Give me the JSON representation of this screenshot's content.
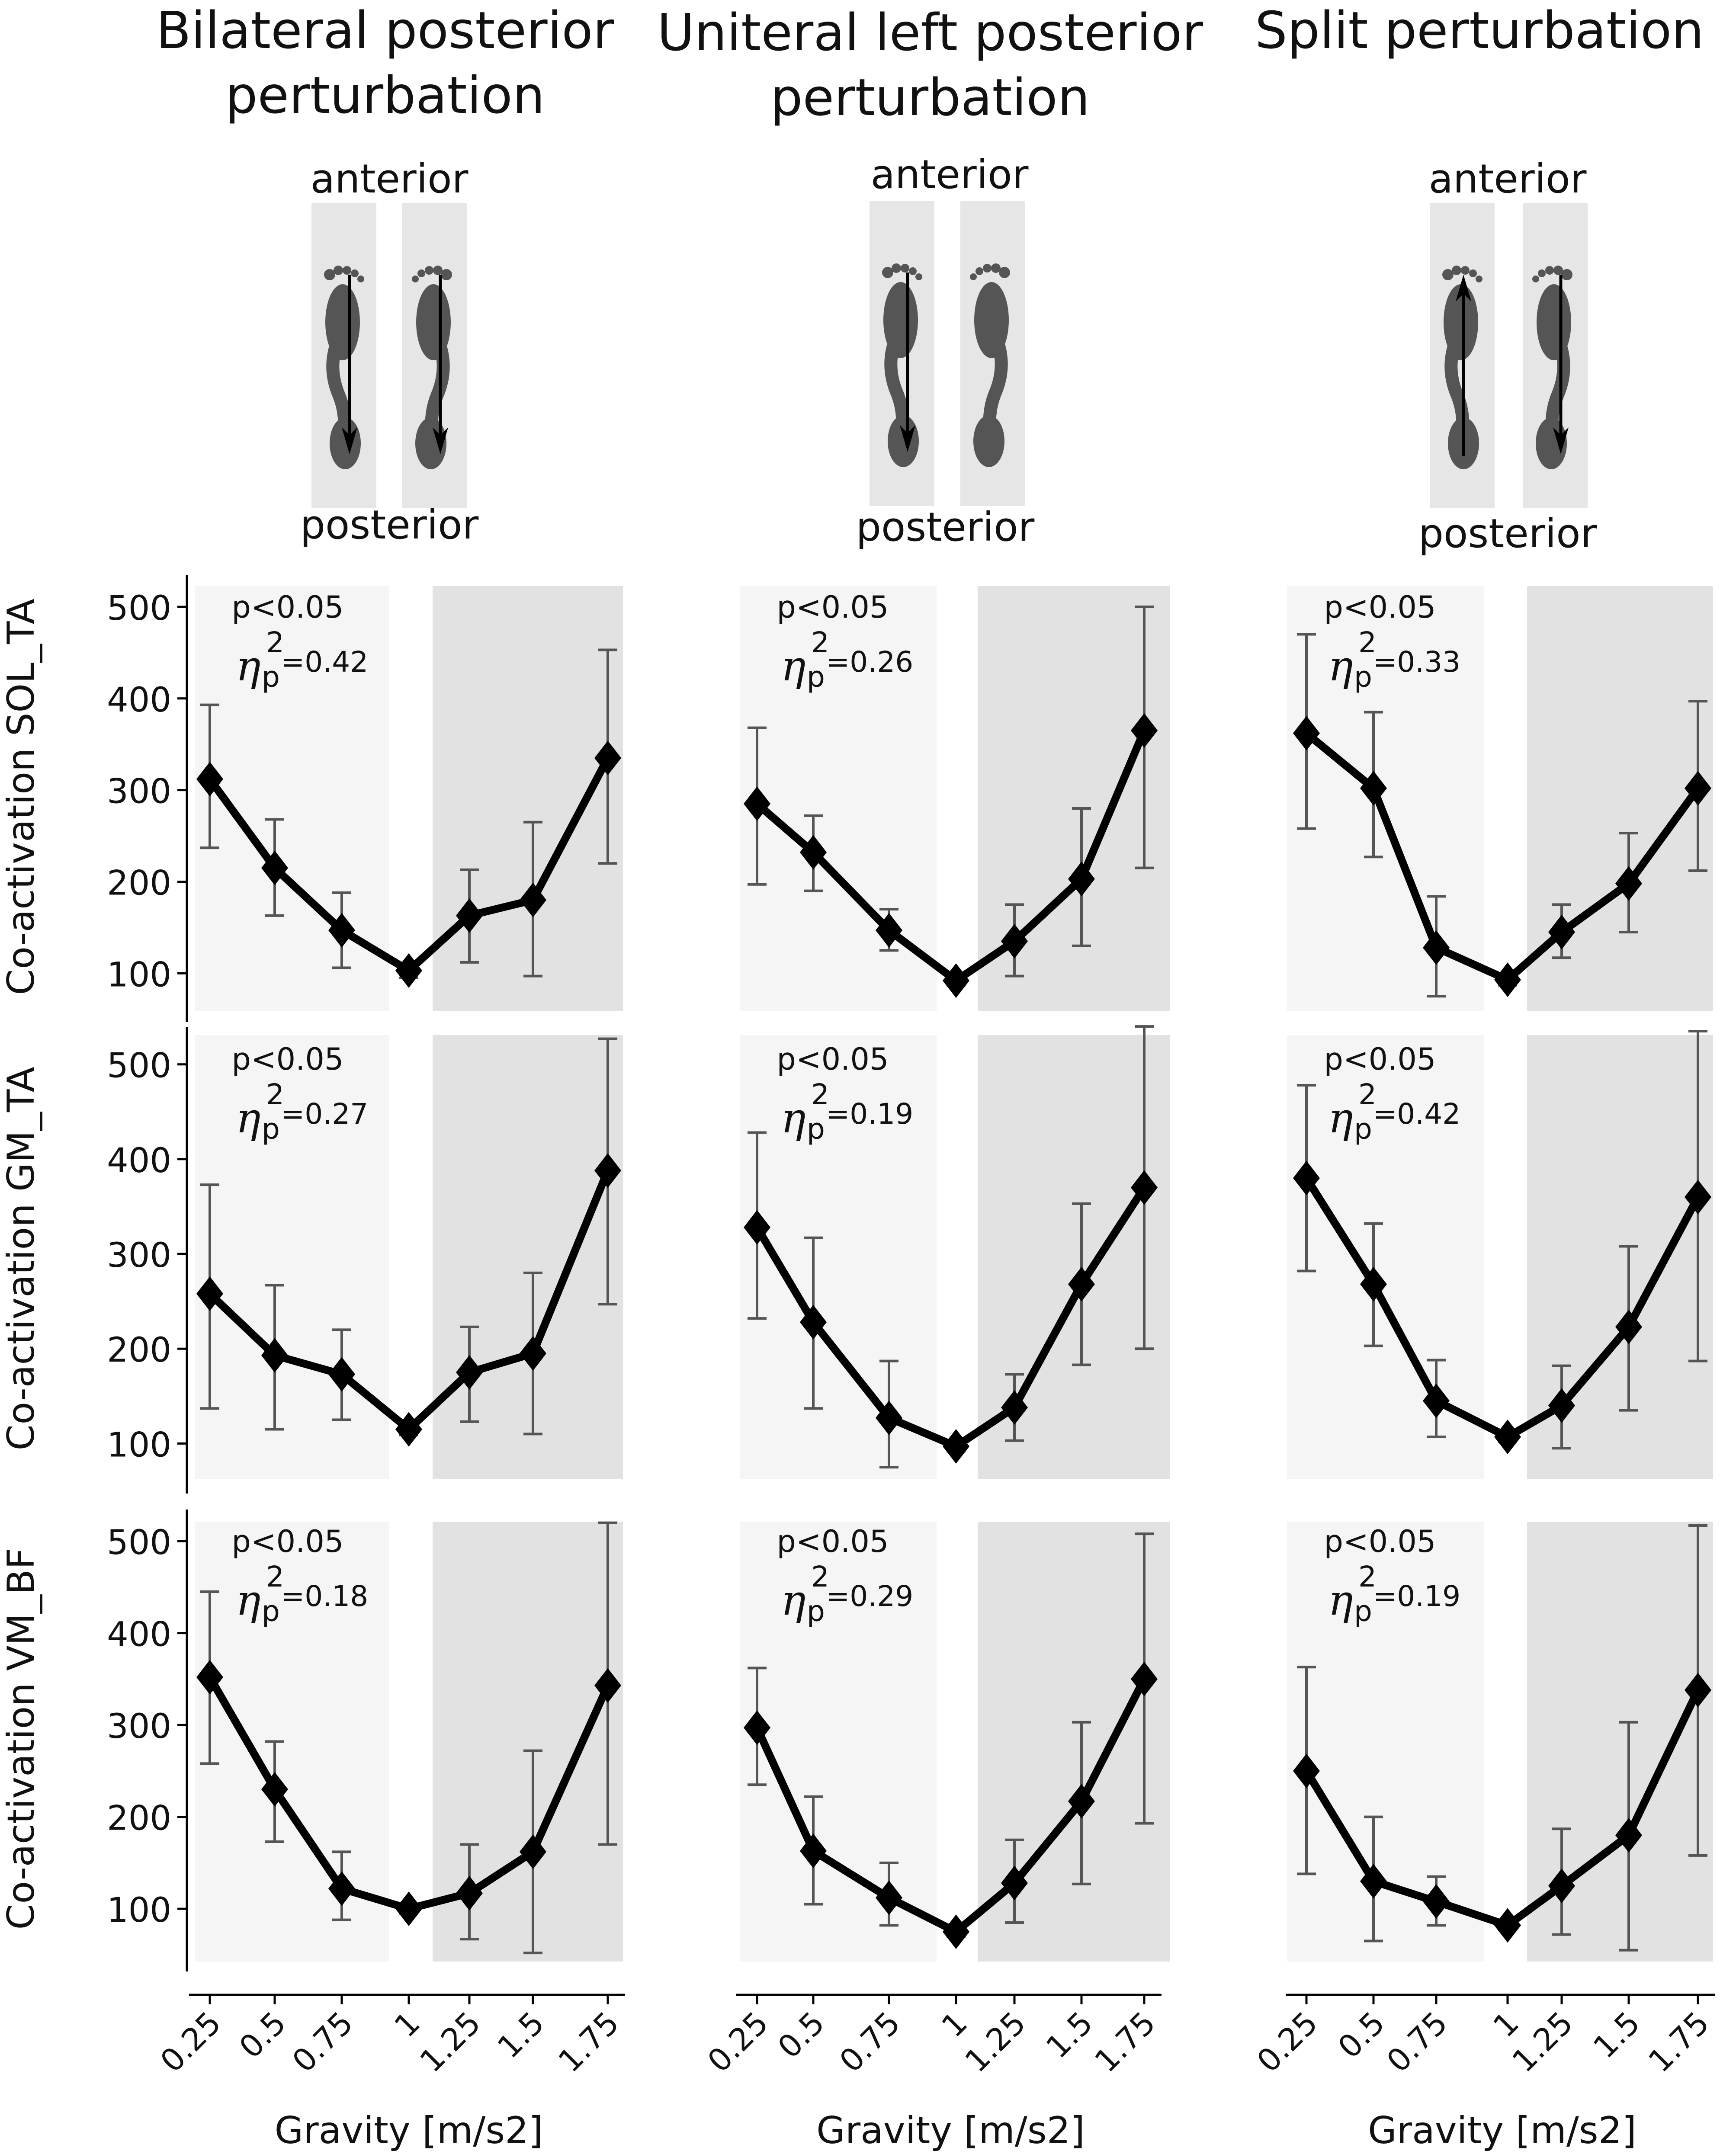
{
  "colors": {
    "light_band": "#f5f5f5",
    "dark_band": "#e2e2e2",
    "line": "#000000",
    "errorbar": "#555555",
    "footprint": "#555555"
  },
  "columns": [
    {
      "title": "Bilateral posterior\nperturbation",
      "top_label": "anterior",
      "bottom_label": "posterior",
      "arrows": [
        "down",
        "down"
      ],
      "icon": "footprint-icon"
    },
    {
      "title": "Uniteral left posterior\nperturbation",
      "top_label": "anterior",
      "bottom_label": "posterior",
      "arrows": [
        "down",
        "none"
      ],
      "icon": "footprint-icon"
    },
    {
      "title": "Split perturbation",
      "top_label": "anterior",
      "bottom_label": "posterior",
      "arrows": [
        "up",
        "down"
      ],
      "icon": "footprint-icon"
    }
  ],
  "row_labels": [
    "Co-activation SOL_TA",
    "Co-activation GM_TA",
    "Co-activation VM_BF"
  ],
  "chart_data": [
    {
      "type": "line",
      "title": "",
      "muscle": "SOL_TA",
      "perturbation": "Bilateral posterior perturbation",
      "x": [
        0.25,
        0.5,
        0.75,
        1,
        1.25,
        1.5,
        1.75
      ],
      "values": [
        312,
        215,
        147,
        103,
        163,
        180,
        335
      ],
      "err_low": [
        237,
        163,
        106,
        95,
        112,
        97,
        220
      ],
      "err_high": [
        393,
        268,
        188,
        110,
        213,
        265,
        453
      ],
      "stat_p": "p<0.05",
      "stat_eta": "0.42",
      "ylim": [
        60,
        525
      ],
      "yticks": [
        100,
        200,
        300,
        400,
        500
      ],
      "ylabel": "Co-activation SOL_TA",
      "xlabel": ""
    },
    {
      "type": "line",
      "title": "",
      "muscle": "SOL_TA",
      "perturbation": "Uniteral left posterior perturbation",
      "x": [
        0.25,
        0.5,
        0.75,
        1,
        1.25,
        1.5,
        1.75
      ],
      "values": [
        285,
        232,
        147,
        92,
        135,
        203,
        365
      ],
      "err_low": [
        197,
        190,
        125,
        87,
        97,
        130,
        215
      ],
      "err_high": [
        368,
        272,
        170,
        98,
        175,
        280,
        500
      ],
      "stat_p": "p<0.05",
      "stat_eta": "0.26",
      "ylim": [
        60,
        525
      ],
      "yticks": [
        100,
        200,
        300,
        400,
        500
      ],
      "ylabel": "",
      "xlabel": ""
    },
    {
      "type": "line",
      "title": "",
      "muscle": "SOL_TA",
      "perturbation": "Split perturbation",
      "x": [
        0.25,
        0.5,
        0.75,
        1,
        1.25,
        1.5,
        1.75
      ],
      "values": [
        362,
        302,
        128,
        93,
        145,
        198,
        302
      ],
      "err_low": [
        258,
        227,
        75,
        87,
        117,
        145,
        212
      ],
      "err_high": [
        470,
        385,
        184,
        98,
        175,
        253,
        397
      ],
      "stat_p": "p<0.05",
      "stat_eta": "0.33",
      "ylim": [
        60,
        525
      ],
      "yticks": [
        100,
        200,
        300,
        400,
        500
      ],
      "ylabel": "",
      "xlabel": ""
    },
    {
      "type": "line",
      "title": "",
      "muscle": "GM_TA",
      "perturbation": "Bilateral posterior perturbation",
      "x": [
        0.25,
        0.5,
        0.75,
        1,
        1.25,
        1.5,
        1.75
      ],
      "values": [
        258,
        193,
        173,
        115,
        175,
        195,
        388
      ],
      "err_low": [
        137,
        115,
        125,
        109,
        123,
        110,
        247
      ],
      "err_high": [
        373,
        267,
        220,
        121,
        223,
        280,
        527
      ],
      "stat_p": "p<0.05",
      "stat_eta": "0.27",
      "ylim": [
        60,
        530
      ],
      "yticks": [
        100,
        200,
        300,
        400,
        500
      ],
      "ylabel": "Co-activation GM_TA",
      "xlabel": ""
    },
    {
      "type": "line",
      "title": "",
      "muscle": "GM_TA",
      "perturbation": "Uniteral left posterior perturbation",
      "x": [
        0.25,
        0.5,
        0.75,
        1,
        1.25,
        1.5,
        1.75
      ],
      "values": [
        328,
        228,
        127,
        97,
        138,
        268,
        370
      ],
      "err_low": [
        232,
        137,
        75,
        92,
        103,
        183,
        200
      ],
      "err_high": [
        428,
        317,
        187,
        103,
        173,
        353,
        540
      ],
      "stat_p": "p<0.05",
      "stat_eta": "0.19",
      "ylim": [
        60,
        530
      ],
      "yticks": [
        100,
        200,
        300,
        400,
        500
      ],
      "ylabel": "",
      "xlabel": ""
    },
    {
      "type": "line",
      "title": "",
      "muscle": "GM_TA",
      "perturbation": "Split perturbation",
      "x": [
        0.25,
        0.5,
        0.75,
        1,
        1.25,
        1.5,
        1.75
      ],
      "values": [
        380,
        268,
        145,
        107,
        140,
        223,
        360
      ],
      "err_low": [
        282,
        203,
        107,
        102,
        95,
        135,
        187
      ],
      "err_high": [
        478,
        332,
        188,
        112,
        182,
        308,
        535
      ],
      "stat_p": "p<0.05",
      "stat_eta": "0.42",
      "ylim": [
        60,
        530
      ],
      "yticks": [
        100,
        200,
        300,
        400,
        500
      ],
      "ylabel": "",
      "xlabel": ""
    },
    {
      "type": "line",
      "title": "",
      "muscle": "VM_BF",
      "perturbation": "Bilateral posterior perturbation",
      "x": [
        0.25,
        0.5,
        0.75,
        1,
        1.25,
        1.5,
        1.75
      ],
      "values": [
        352,
        230,
        122,
        100,
        117,
        162,
        343
      ],
      "err_low": [
        258,
        173,
        88,
        95,
        67,
        52,
        170
      ],
      "err_high": [
        445,
        282,
        162,
        105,
        170,
        272,
        520
      ],
      "stat_p": "p<0.05",
      "stat_eta": "0.18",
      "ylim": [
        45,
        525
      ],
      "yticks": [
        100,
        200,
        300,
        400,
        500
      ],
      "ylabel": "Co-activation VM_BF",
      "xlabel": "Gravity [m/s2]"
    },
    {
      "type": "line",
      "title": "",
      "muscle": "VM_BF",
      "perturbation": "Uniteral left posterior perturbation",
      "x": [
        0.25,
        0.5,
        0.75,
        1,
        1.25,
        1.5,
        1.75
      ],
      "values": [
        297,
        163,
        112,
        75,
        128,
        217,
        350
      ],
      "err_low": [
        235,
        105,
        82,
        70,
        85,
        127,
        193
      ],
      "err_high": [
        362,
        222,
        150,
        80,
        175,
        303,
        508
      ],
      "stat_p": "p<0.05",
      "stat_eta": "0.29",
      "ylim": [
        45,
        525
      ],
      "yticks": [
        100,
        200,
        300,
        400,
        500
      ],
      "ylabel": "",
      "xlabel": "Gravity [m/s2]"
    },
    {
      "type": "line",
      "title": "",
      "muscle": "VM_BF",
      "perturbation": "Split perturbation",
      "x": [
        0.25,
        0.5,
        0.75,
        1,
        1.25,
        1.5,
        1.75
      ],
      "values": [
        250,
        130,
        108,
        82,
        125,
        180,
        338
      ],
      "err_low": [
        138,
        65,
        82,
        77,
        72,
        55,
        158
      ],
      "err_high": [
        363,
        200,
        135,
        88,
        187,
        303,
        517
      ],
      "stat_p": "p<0.05",
      "stat_eta": "0.19",
      "ylim": [
        45,
        525
      ],
      "yticks": [
        100,
        200,
        300,
        400,
        500
      ],
      "ylabel": "",
      "xlabel": "Gravity [m/s2]"
    }
  ],
  "x_tick_labels": [
    "0.25",
    "0.5",
    "0.75",
    "1",
    "1.25",
    "1.5",
    "1.75"
  ],
  "x_axis_label": "Gravity [m/s2]",
  "eta_symbol": "η",
  "eta_sup": "2",
  "eta_sub": "p"
}
